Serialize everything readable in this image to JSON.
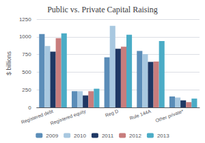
{
  "chart_data": {
    "type": "bar",
    "title": "Public vs. Private Capital Raising",
    "categories": [
      "Registered debt",
      "Registered equity",
      "Reg D",
      "Rule 144A",
      "Other private*"
    ],
    "series": [
      {
        "name": "2009",
        "color": "#5b8db8",
        "values": [
          1040,
          230,
          710,
          800,
          155
        ]
      },
      {
        "name": "2010",
        "color": "#a8c8e0",
        "values": [
          870,
          230,
          1155,
          755,
          140
        ]
      },
      {
        "name": "2011",
        "color": "#1f3864",
        "values": [
          790,
          170,
          830,
          645,
          100
        ]
      },
      {
        "name": "2012",
        "color": "#c87d7d",
        "values": [
          980,
          230,
          860,
          650,
          75
        ]
      },
      {
        "name": "2013",
        "color": "#4bacc6",
        "values": [
          1050,
          265,
          1030,
          940,
          125
        ]
      }
    ],
    "ylabel": "$ billions",
    "ylim": [
      0,
      1250
    ],
    "yticks": [
      0,
      250,
      500,
      750,
      1000,
      1250
    ],
    "grid": true,
    "legend": "bottom"
  }
}
